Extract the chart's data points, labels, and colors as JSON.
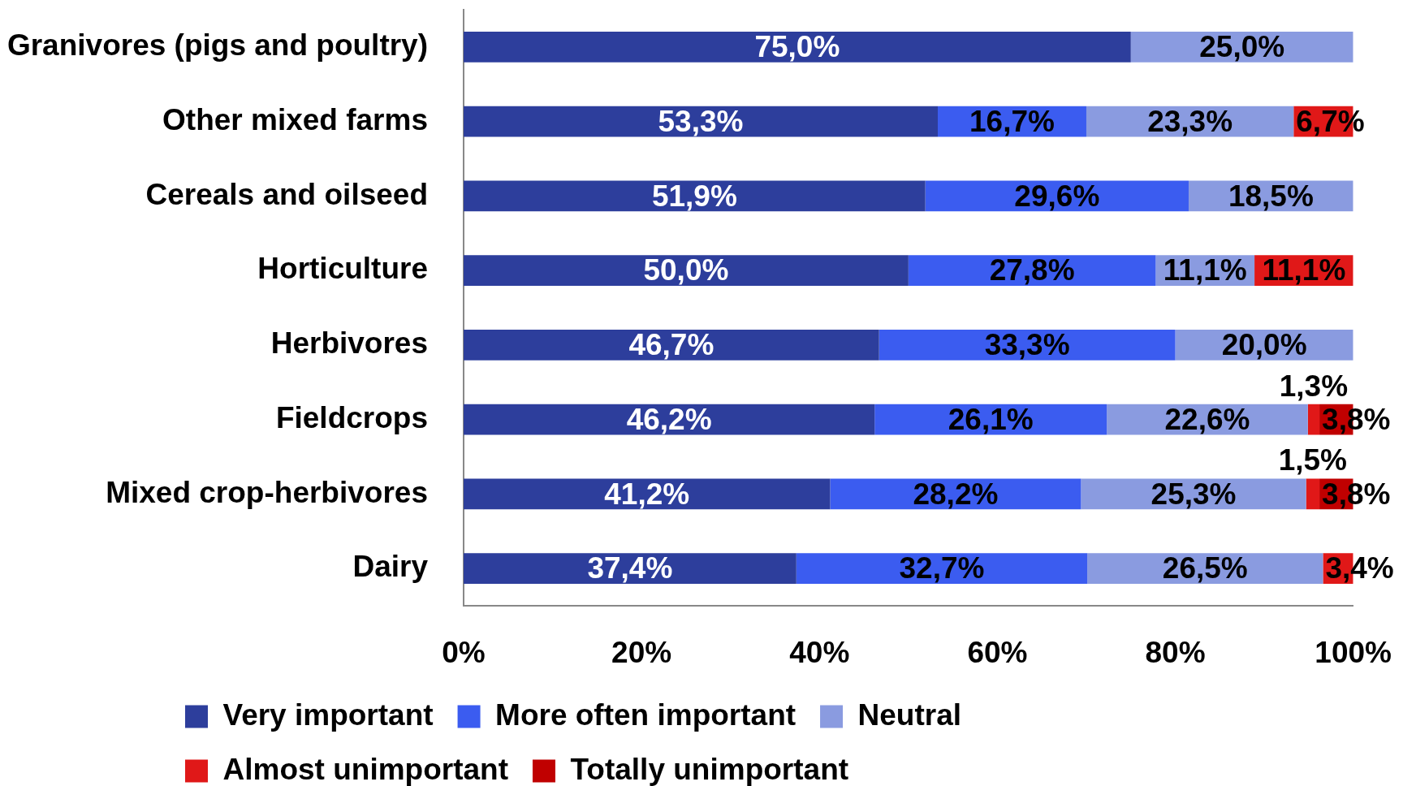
{
  "chart_data": {
    "type": "bar",
    "orientation": "horizontal",
    "stacked": true,
    "categories": [
      "Granivores (pigs and poultry)",
      "Other mixed farms",
      "Cereals and oilseed",
      "Horticulture",
      "Herbivores",
      "Fieldcrops",
      "Mixed crop-herbivores",
      "Dairy"
    ],
    "series": [
      {
        "name": "Very important",
        "color": "#2d3e9c",
        "values": [
          75.0,
          53.3,
          51.9,
          50.0,
          46.7,
          46.2,
          41.2,
          37.4
        ],
        "value_labels": [
          "75,0%",
          "53,3%",
          "51,9%",
          "50,0%",
          "46,7%",
          "46,2%",
          "41,2%",
          "37,4%"
        ]
      },
      {
        "name": "More often important",
        "color": "#3b5cf0",
        "values": [
          null,
          16.7,
          29.6,
          27.8,
          33.3,
          26.1,
          28.2,
          32.7
        ],
        "value_labels": [
          null,
          "16,7%",
          "29,6%",
          "27,8%",
          "33,3%",
          "26,1%",
          "28,2%",
          "32,7%"
        ]
      },
      {
        "name": "Neutral",
        "color": "#8a9be0",
        "values": [
          25.0,
          23.3,
          18.5,
          11.1,
          20.0,
          22.6,
          25.3,
          26.5
        ],
        "value_labels": [
          "25,0%",
          "23,3%",
          "18,5%",
          "11,1%",
          "20,0%",
          "22,6%",
          "25,3%",
          "26,5%"
        ]
      },
      {
        "name": "Almost unimportant",
        "color": "#e01818",
        "values": [
          null,
          6.7,
          null,
          11.1,
          null,
          1.3,
          1.5,
          3.4
        ],
        "value_labels": [
          null,
          "6,7%",
          null,
          "11,1%",
          null,
          "1,3%",
          "1,5%",
          "3,4%"
        ]
      },
      {
        "name": "Totally unimportant",
        "color": "#c00000",
        "values": [
          null,
          null,
          null,
          null,
          null,
          3.8,
          3.8,
          null
        ],
        "value_labels": [
          null,
          null,
          null,
          null,
          null,
          "3,8%",
          "3,8%",
          null
        ]
      }
    ],
    "xlim": [
      0,
      100
    ],
    "xticks": [
      {
        "value": 0,
        "label": "0%"
      },
      {
        "value": 20,
        "label": "20%"
      },
      {
        "value": 40,
        "label": "40%"
      },
      {
        "value": 60,
        "label": "60%"
      },
      {
        "value": 80,
        "label": "80%"
      },
      {
        "value": 100,
        "label": "100%"
      }
    ],
    "legend": "bottom"
  }
}
